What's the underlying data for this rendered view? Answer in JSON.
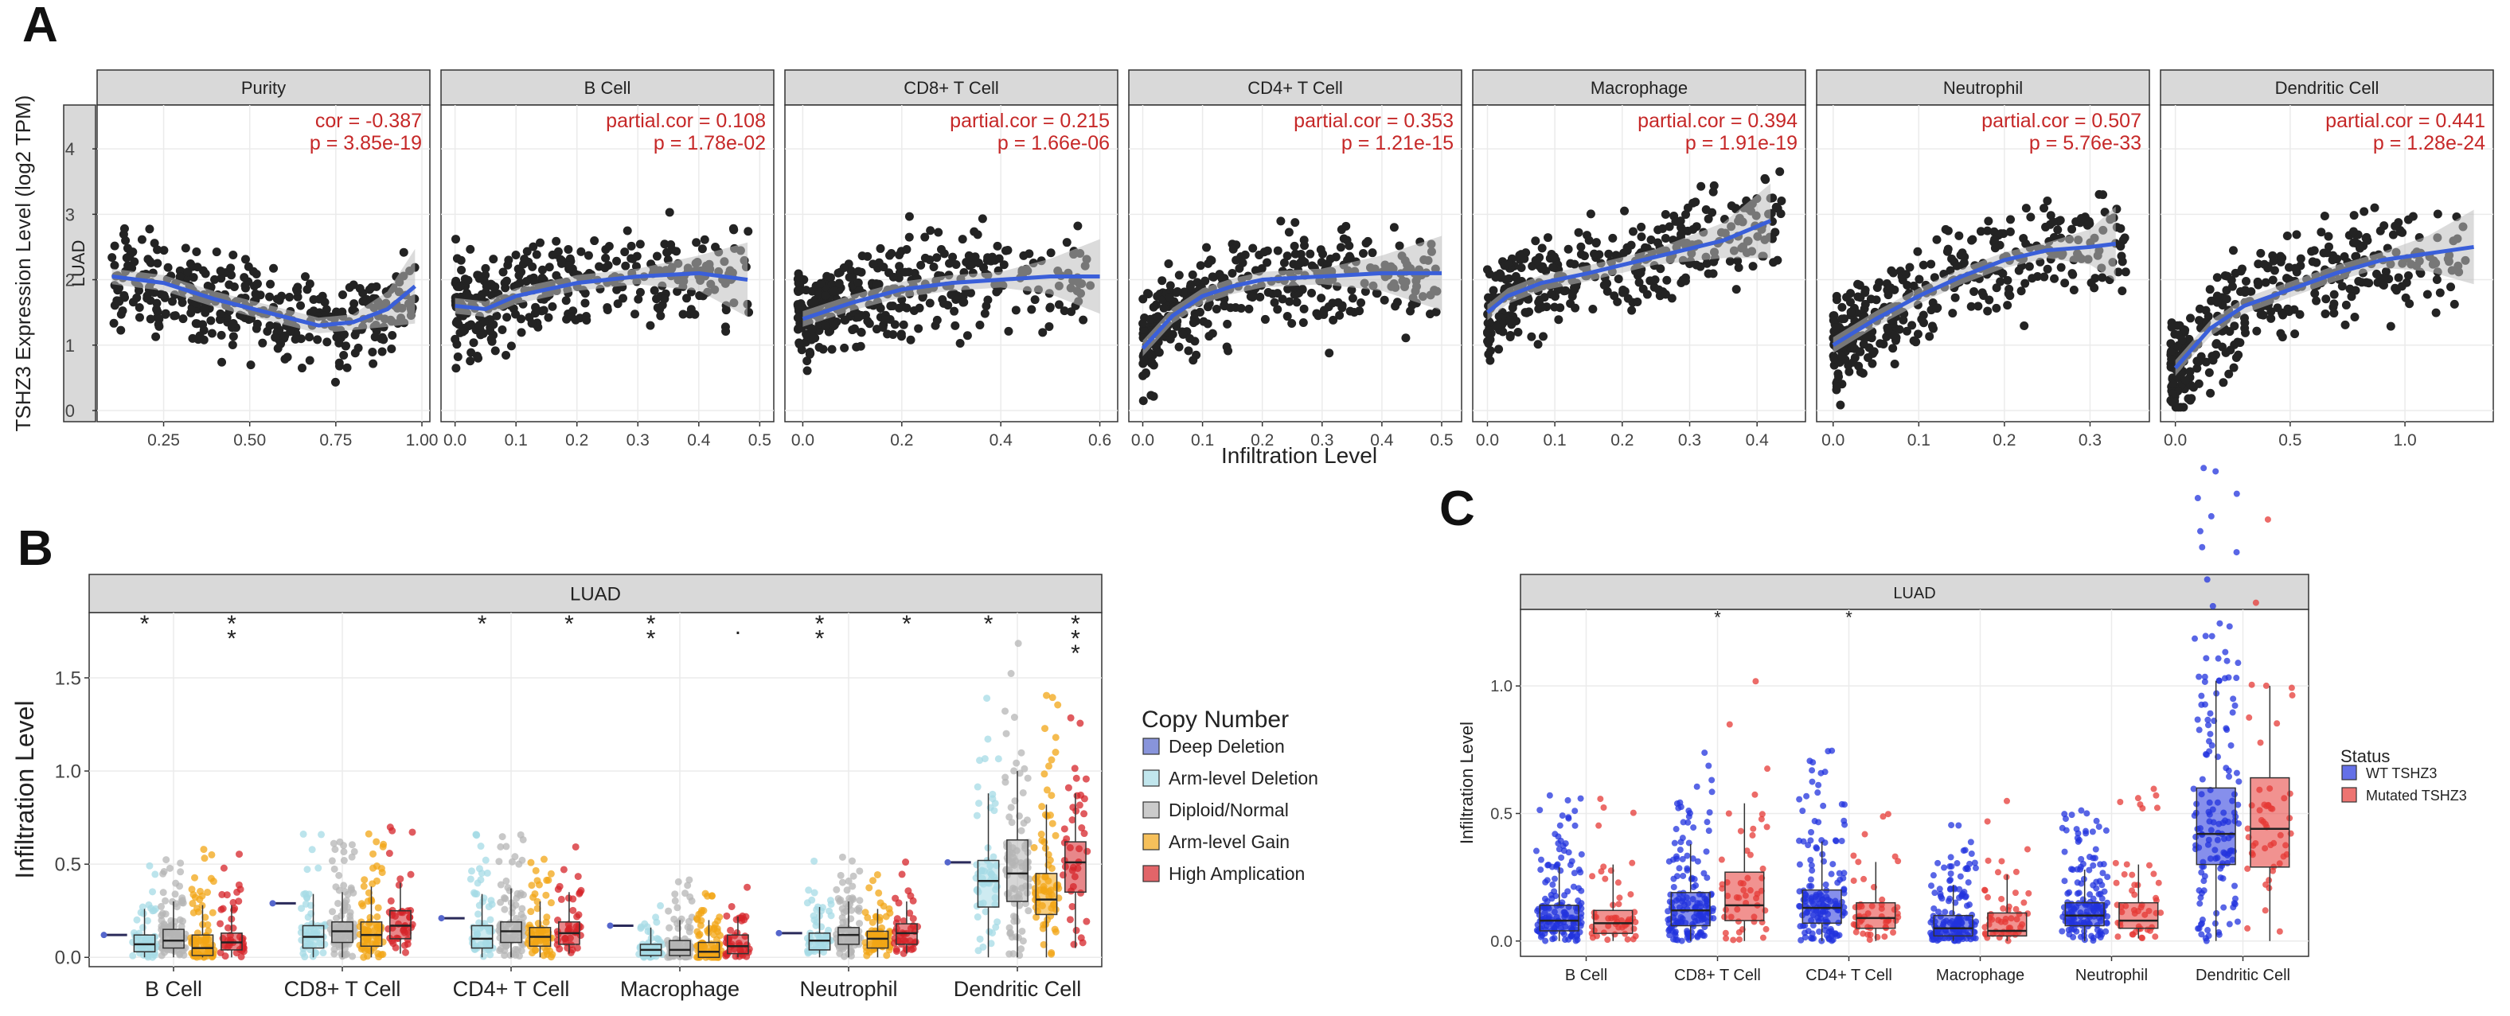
{
  "chart_data": [
    {
      "id": "A",
      "type": "scatter",
      "panel_label": "A",
      "strip_label": "LUAD",
      "ylabel": "TSHZ3 Expression Level (log2 TPM)",
      "xlabel": "Infiltration Level",
      "ylim": [
        0,
        4.5
      ],
      "yticks": [
        0,
        1,
        2,
        3,
        4
      ],
      "colors": {
        "points": "#222222",
        "trend": "#3a5fd9",
        "band": "#bdbdbd",
        "stats": "#c62828"
      },
      "facets": [
        {
          "title": "Purity",
          "xlim": [
            0.08,
            1.0
          ],
          "xticks": [
            "0.25",
            "0.50",
            "0.75",
            "1.00"
          ],
          "xtick_values": [
            0.25,
            0.5,
            0.75,
            1.0
          ],
          "stat1": "cor = -0.387",
          "stat2": "p = 3.85e-19",
          "trend": [
            [
              0.1,
              2.05
            ],
            [
              0.25,
              1.95
            ],
            [
              0.4,
              1.7
            ],
            [
              0.55,
              1.5
            ],
            [
              0.7,
              1.3
            ],
            [
              0.8,
              1.35
            ],
            [
              0.9,
              1.55
            ],
            [
              0.98,
              1.9
            ]
          ],
          "rho": -0.39
        },
        {
          "title": "B Cell",
          "xlim": [
            -0.01,
            0.51
          ],
          "xticks": [
            "0.0",
            "0.1",
            "0.2",
            "0.3",
            "0.4",
            "0.5"
          ],
          "xtick_values": [
            0,
            0.1,
            0.2,
            0.3,
            0.4,
            0.5
          ],
          "stat1": "partial.cor = 0.108",
          "stat2": "p = 1.78e-02",
          "trend": [
            [
              0.0,
              1.6
            ],
            [
              0.05,
              1.55
            ],
            [
              0.1,
              1.75
            ],
            [
              0.2,
              1.95
            ],
            [
              0.3,
              2.05
            ],
            [
              0.4,
              2.1
            ],
            [
              0.48,
              2.0
            ]
          ],
          "rho": 0.11
        },
        {
          "title": "CD8+ T Cell",
          "xlim": [
            -0.02,
            0.62
          ],
          "xticks": [
            "0.0",
            "0.2",
            "0.4",
            "0.6"
          ],
          "xtick_values": [
            0,
            0.2,
            0.4,
            0.6
          ],
          "stat1": "partial.cor = 0.215",
          "stat2": "p = 1.66e-06",
          "trend": [
            [
              0.0,
              1.4
            ],
            [
              0.1,
              1.65
            ],
            [
              0.2,
              1.85
            ],
            [
              0.3,
              1.95
            ],
            [
              0.4,
              2.0
            ],
            [
              0.5,
              2.05
            ],
            [
              0.6,
              2.05
            ]
          ],
          "rho": 0.22
        },
        {
          "title": "CD4+ T Cell",
          "xlim": [
            -0.01,
            0.52
          ],
          "xticks": [
            "0.0",
            "0.1",
            "0.2",
            "0.3",
            "0.4",
            "0.5"
          ],
          "xtick_values": [
            0,
            0.1,
            0.2,
            0.3,
            0.4,
            0.5
          ],
          "stat1": "partial.cor = 0.353",
          "stat2": "p = 1.21e-15",
          "trend": [
            [
              0.0,
              0.95
            ],
            [
              0.05,
              1.45
            ],
            [
              0.1,
              1.75
            ],
            [
              0.15,
              1.9
            ],
            [
              0.2,
              2.0
            ],
            [
              0.3,
              2.05
            ],
            [
              0.4,
              2.1
            ],
            [
              0.5,
              2.1
            ]
          ],
          "rho": 0.35
        },
        {
          "title": "Macrophage",
          "xlim": [
            -0.01,
            0.46
          ],
          "xticks": [
            "0.0",
            "0.1",
            "0.2",
            "0.3",
            "0.4"
          ],
          "xtick_values": [
            0,
            0.1,
            0.2,
            0.3,
            0.4
          ],
          "stat1": "partial.cor = 0.394",
          "stat2": "p = 1.91e-19",
          "trend": [
            [
              0.0,
              1.5
            ],
            [
              0.03,
              1.75
            ],
            [
              0.08,
              1.95
            ],
            [
              0.15,
              2.1
            ],
            [
              0.25,
              2.35
            ],
            [
              0.35,
              2.6
            ],
            [
              0.42,
              2.9
            ]
          ],
          "rho": 0.39
        },
        {
          "title": "Neutrophil",
          "xlim": [
            -0.01,
            0.36
          ],
          "xticks": [
            "0.0",
            "0.1",
            "0.2",
            "0.3"
          ],
          "xtick_values": [
            0,
            0.1,
            0.2,
            0.3
          ],
          "stat1": "partial.cor = 0.507",
          "stat2": "p = 5.76e-33",
          "trend": [
            [
              0.0,
              1.0
            ],
            [
              0.05,
              1.4
            ],
            [
              0.1,
              1.75
            ],
            [
              0.15,
              2.05
            ],
            [
              0.2,
              2.3
            ],
            [
              0.25,
              2.45
            ],
            [
              0.3,
              2.5
            ],
            [
              0.33,
              2.55
            ]
          ],
          "rho": 0.51
        },
        {
          "title": "Dendritic Cell",
          "xlim": [
            -0.03,
            1.35
          ],
          "xticks": [
            "0.0",
            "0.5",
            "1.0"
          ],
          "xtick_values": [
            0,
            0.5,
            1.0
          ],
          "stat1": "partial.cor = 0.441",
          "stat2": "p = 1.28e-24",
          "trend": [
            [
              0.0,
              0.65
            ],
            [
              0.15,
              1.25
            ],
            [
              0.3,
              1.6
            ],
            [
              0.5,
              1.85
            ],
            [
              0.7,
              2.1
            ],
            [
              0.9,
              2.3
            ],
            [
              1.1,
              2.4
            ],
            [
              1.3,
              2.5
            ]
          ],
          "rho": 0.44
        }
      ]
    },
    {
      "id": "B",
      "type": "box",
      "panel_label": "B",
      "strip_label": "LUAD",
      "ylabel": "Infiltration Level",
      "xlabel": "",
      "ylim": [
        -0.05,
        1.85
      ],
      "yticks": [
        "0.0",
        "0.5",
        "1.0",
        "1.5"
      ],
      "ytick_values": [
        0,
        0.5,
        1.0,
        1.5
      ],
      "categories": [
        "B Cell",
        "CD8+ T Cell",
        "CD4+ T Cell",
        "Macrophage",
        "Neutrophil",
        "Dendritic Cell"
      ],
      "legend": {
        "title": "Copy Number",
        "position": "right",
        "entries": [
          {
            "label": "Deep Deletion",
            "color": "#5566cc"
          },
          {
            "label": "Arm-level Deletion",
            "color": "#a6dbe6"
          },
          {
            "label": "Diploid/Normal",
            "color": "#b5b5b5"
          },
          {
            "label": "Arm-level Gain",
            "color": "#f2a516"
          },
          {
            "label": "High Amplication",
            "color": "#d6242a"
          }
        ]
      },
      "series": [
        {
          "name": "Deep Deletion",
          "values": [
            [
              0.12,
              0.12,
              0.12,
              0.12,
              0.12
            ],
            [
              0.29,
              0.29,
              0.29,
              0.29,
              0.29
            ],
            [
              0.21,
              0.21,
              0.21,
              0.21,
              0.21
            ],
            [
              0.17,
              0.17,
              0.17,
              0.17,
              0.17
            ],
            [
              0.13,
              0.13,
              0.13,
              0.13,
              0.13
            ],
            [
              0.51,
              0.51,
              0.51,
              0.51,
              0.51
            ]
          ]
        },
        {
          "name": "Arm-level Deletion",
          "values": [
            [
              0.0,
              0.03,
              0.07,
              0.12,
              0.26
            ],
            [
              0.0,
              0.05,
              0.11,
              0.17,
              0.34
            ],
            [
              0.0,
              0.05,
              0.1,
              0.17,
              0.34
            ],
            [
              0.0,
              0.01,
              0.04,
              0.07,
              0.16
            ],
            [
              0.0,
              0.04,
              0.09,
              0.13,
              0.27
            ],
            [
              0.0,
              0.27,
              0.41,
              0.52,
              0.88
            ]
          ]
        },
        {
          "name": "Diploid/Normal",
          "values": [
            [
              0.0,
              0.05,
              0.09,
              0.15,
              0.3
            ],
            [
              0.0,
              0.08,
              0.14,
              0.19,
              0.35
            ],
            [
              0.0,
              0.08,
              0.14,
              0.19,
              0.37
            ],
            [
              0.0,
              0.01,
              0.04,
              0.09,
              0.2
            ],
            [
              0.0,
              0.07,
              0.12,
              0.16,
              0.3
            ],
            [
              0.0,
              0.3,
              0.45,
              0.63,
              1.0
            ]
          ]
        },
        {
          "name": "Arm-level Gain",
          "values": [
            [
              0.0,
              0.01,
              0.05,
              0.12,
              0.28
            ],
            [
              0.0,
              0.06,
              0.12,
              0.19,
              0.38
            ],
            [
              0.0,
              0.06,
              0.11,
              0.16,
              0.3
            ],
            [
              0.0,
              0.0,
              0.03,
              0.08,
              0.2
            ],
            [
              0.0,
              0.05,
              0.1,
              0.14,
              0.26
            ],
            [
              0.0,
              0.23,
              0.31,
              0.45,
              0.82
            ]
          ]
        },
        {
          "name": "High Amplication",
          "values": [
            [
              0.0,
              0.04,
              0.08,
              0.13,
              0.28
            ],
            [
              0.02,
              0.1,
              0.17,
              0.25,
              0.4
            ],
            [
              0.02,
              0.07,
              0.13,
              0.19,
              0.35
            ],
            [
              0.0,
              0.02,
              0.06,
              0.12,
              0.22
            ],
            [
              0.02,
              0.07,
              0.13,
              0.18,
              0.3
            ],
            [
              0.05,
              0.35,
              0.51,
              0.62,
              0.88
            ]
          ]
        }
      ],
      "significance": [
        {
          "category": "B Cell",
          "series": "Arm-level Deletion",
          "label": "*"
        },
        {
          "category": "B Cell",
          "series": "High Amplication",
          "label": "**"
        },
        {
          "category": "CD4+ T Cell",
          "series": "Arm-level Deletion",
          "label": "*"
        },
        {
          "category": "CD4+ T Cell",
          "series": "High Amplication",
          "label": "*"
        },
        {
          "category": "Macrophage",
          "series": "Arm-level Deletion",
          "label": "**"
        },
        {
          "category": "Macrophage",
          "series": "High Amplication",
          "label": "."
        },
        {
          "category": "Neutrophil",
          "series": "Arm-level Deletion",
          "label": "**"
        },
        {
          "category": "Neutrophil",
          "series": "High Amplication",
          "label": "*"
        },
        {
          "category": "Dendritic Cell",
          "series": "Arm-level Deletion",
          "label": "*"
        },
        {
          "category": "Dendritic Cell",
          "series": "High Amplication",
          "label": "***"
        }
      ]
    },
    {
      "id": "C",
      "type": "box",
      "panel_label": "C",
      "strip_label": "LUAD",
      "ylabel": "Infiltration Level",
      "xlabel": "",
      "ylim": [
        -0.06,
        1.3
      ],
      "yticks": [
        "0.0",
        "0.5",
        "1.0"
      ],
      "ytick_values": [
        0,
        0.5,
        1.0
      ],
      "categories": [
        "B Cell",
        "CD8+ T Cell",
        "CD4+ T Cell",
        "Macrophage",
        "Neutrophil",
        "Dendritic Cell"
      ],
      "legend": {
        "title": "Status",
        "position": "right",
        "entries": [
          {
            "label": "WT TSHZ3",
            "color": "#2233dd"
          },
          {
            "label": "Mutated TSHZ3",
            "color": "#e53935"
          }
        ]
      },
      "series": [
        {
          "name": "WT TSHZ3",
          "values": [
            [
              0.0,
              0.04,
              0.08,
              0.14,
              0.29
            ],
            [
              0.0,
              0.06,
              0.12,
              0.19,
              0.38
            ],
            [
              0.0,
              0.07,
              0.13,
              0.2,
              0.39
            ],
            [
              0.0,
              0.02,
              0.05,
              0.1,
              0.22
            ],
            [
              0.0,
              0.06,
              0.1,
              0.15,
              0.28
            ],
            [
              0.0,
              0.3,
              0.42,
              0.6,
              1.02
            ]
          ]
        },
        {
          "name": "Mutated TSHZ3",
          "values": [
            [
              0.0,
              0.03,
              0.07,
              0.12,
              0.3
            ],
            [
              0.0,
              0.08,
              0.14,
              0.27,
              0.54
            ],
            [
              0.0,
              0.05,
              0.09,
              0.15,
              0.31
            ],
            [
              0.0,
              0.02,
              0.04,
              0.11,
              0.26
            ],
            [
              0.01,
              0.05,
              0.08,
              0.15,
              0.3
            ],
            [
              0.0,
              0.29,
              0.44,
              0.64,
              1.0
            ]
          ]
        }
      ],
      "significance": [
        {
          "category": "CD8+ T Cell",
          "series": "",
          "label": "*"
        },
        {
          "category": "CD4+ T Cell",
          "series": "",
          "label": "*"
        }
      ]
    }
  ]
}
